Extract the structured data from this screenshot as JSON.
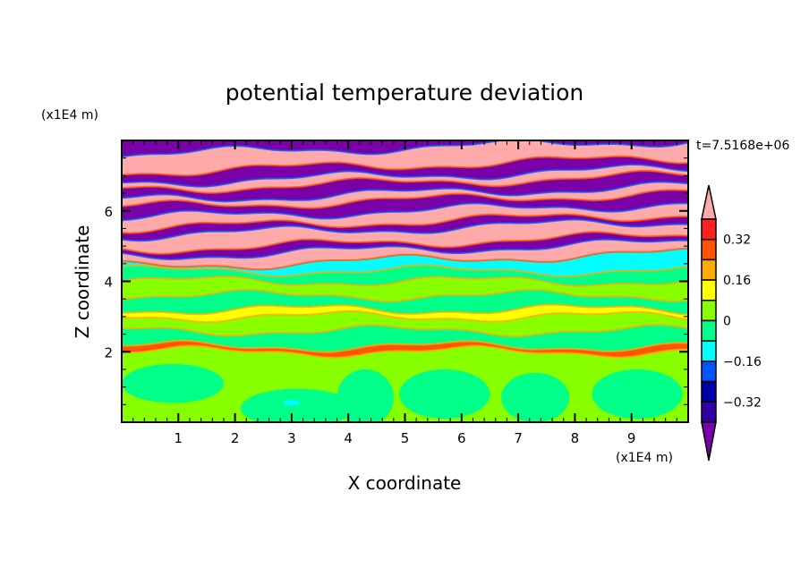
{
  "chart_data": {
    "type": "heatmap",
    "title": "potential temperature deviation",
    "xlabel": "X coordinate",
    "ylabel": "Z coordinate",
    "x_unit": "(x1E4 m)",
    "y_unit": "(x1E4 m)",
    "time_label": "t=7.5168e+06",
    "xlim": [
      0,
      10
    ],
    "ylim": [
      0,
      8
    ],
    "x_ticks": [
      1,
      2,
      3,
      4,
      5,
      6,
      7,
      8,
      9
    ],
    "x_tick_labels": [
      "1",
      "2",
      "3",
      "4",
      "5",
      "6",
      "7",
      "8",
      "9"
    ],
    "y_ticks": [
      2,
      4,
      6
    ],
    "y_tick_labels": [
      "2",
      "4",
      "6"
    ],
    "colorbar": {
      "levels": [
        -0.4,
        -0.32,
        -0.24,
        -0.16,
        -0.08,
        0,
        0.08,
        0.16,
        0.24,
        0.32,
        0.4
      ],
      "tick_values": [
        0.32,
        0.16,
        0,
        -0.16,
        -0.32
      ],
      "tick_labels": [
        "0.32",
        "0.16",
        "0",
        "−0.16",
        "−0.32"
      ],
      "colors_low_to_high": [
        "#7a00a8",
        "#3300a8",
        "#0000a8",
        "#0055ff",
        "#00ffff",
        "#00ff88",
        "#88ff00",
        "#ffff00",
        "#ffaa00",
        "#ff5500",
        "#ff2222",
        "#ffaaaa"
      ],
      "extend": "both"
    },
    "bands": [
      {
        "z": [
          0.0,
          2.0
        ],
        "level": 6
      },
      {
        "z": [
          2.0,
          2.15
        ],
        "level": 9
      },
      {
        "z": [
          2.15,
          2.6
        ],
        "level": 5
      },
      {
        "z": [
          2.6,
          3.0
        ],
        "level": 6
      },
      {
        "z": [
          3.0,
          3.2
        ],
        "level": 7
      },
      {
        "z": [
          3.2,
          3.6
        ],
        "level": 5
      },
      {
        "z": [
          3.6,
          4.0
        ],
        "level": 6
      },
      {
        "z": [
          4.0,
          4.3
        ],
        "level": 5
      },
      {
        "z": [
          4.3,
          4.6
        ],
        "level": 4
      },
      {
        "z": [
          4.6,
          4.9
        ],
        "level": 11
      },
      {
        "z": [
          4.9,
          5.1
        ],
        "level": 0
      },
      {
        "z": [
          5.1,
          5.5
        ],
        "level": 11
      },
      {
        "z": [
          5.5,
          5.7
        ],
        "level": 0
      },
      {
        "z": [
          5.7,
          6.0
        ],
        "level": 11
      },
      {
        "z": [
          6.0,
          6.3
        ],
        "level": 0
      },
      {
        "z": [
          6.3,
          6.5
        ],
        "level": 11
      },
      {
        "z": [
          6.5,
          6.8
        ],
        "level": 0
      },
      {
        "z": [
          6.8,
          7.0
        ],
        "level": 11
      },
      {
        "z": [
          7.0,
          7.3
        ],
        "level": 0
      },
      {
        "z": [
          7.3,
          7.8
        ],
        "level": 11
      },
      {
        "z": [
          7.8,
          8.0
        ],
        "level": 0
      }
    ],
    "blobs": [
      {
        "x": 0.9,
        "z": 1.1,
        "rx": 0.9,
        "rz": 0.55,
        "level": 5
      },
      {
        "x": 3.1,
        "z": 0.4,
        "rx": 1.0,
        "rz": 0.55,
        "level": 5
      },
      {
        "x": 3.0,
        "z": 0.55,
        "rx": 0.15,
        "rz": 0.08,
        "level": 4
      },
      {
        "x": 4.3,
        "z": 0.7,
        "rx": 0.5,
        "rz": 0.8,
        "level": 5
      },
      {
        "x": 5.7,
        "z": 0.8,
        "rx": 0.8,
        "rz": 0.7,
        "level": 5
      },
      {
        "x": 7.3,
        "z": 0.7,
        "rx": 0.6,
        "rz": 0.7,
        "level": 5
      },
      {
        "x": 9.1,
        "z": 0.8,
        "rx": 0.8,
        "rz": 0.7,
        "level": 5
      }
    ]
  }
}
